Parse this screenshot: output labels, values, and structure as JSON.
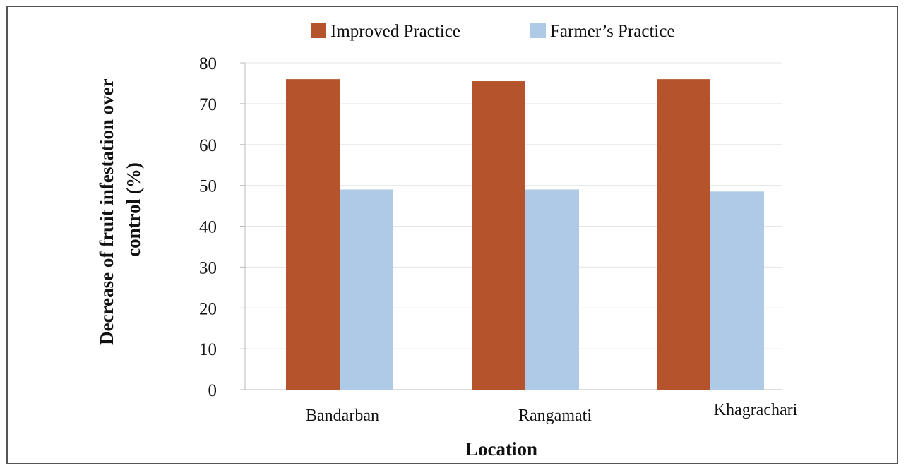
{
  "chart_data": {
    "type": "bar",
    "categories": [
      "Bandarban",
      "Rangamati",
      "Khagrachari"
    ],
    "series": [
      {
        "name": "Improved Practice",
        "values": [
          76,
          75.5,
          76
        ],
        "color": "#b5532c"
      },
      {
        "name": "Farmer’s Practice",
        "values": [
          49,
          49,
          48.5
        ],
        "color": "#aecae6"
      }
    ],
    "title": "",
    "xlabel": "Location",
    "ylabel_lines": [
      "Decrease of  fruit infestation  over",
      "control (%)"
    ],
    "ylim": [
      0,
      80
    ],
    "yticks": [
      "0",
      "10",
      "20",
      "30",
      "40",
      "50",
      "60",
      "70",
      "80"
    ],
    "grid": true,
    "legend_position": "top-center"
  }
}
